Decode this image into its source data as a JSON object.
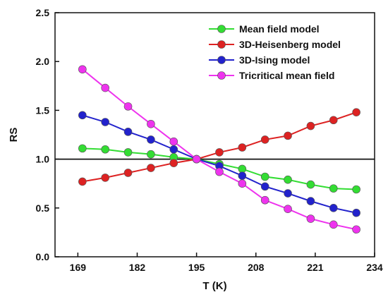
{
  "chart_data": {
    "type": "line",
    "title": "",
    "xlabel": "T (K)",
    "ylabel": "RS",
    "xlim": [
      164,
      234
    ],
    "ylim": [
      0.0,
      2.5
    ],
    "xticks": [
      169,
      182,
      195,
      208,
      221,
      234
    ],
    "yticks": [
      0.0,
      0.5,
      1.0,
      1.5,
      2.0,
      2.5
    ],
    "xtick_labels": [
      "169",
      "182",
      "195",
      "208",
      "221",
      "234"
    ],
    "ytick_labels": [
      "0.0",
      "0.5",
      "1.0",
      "1.5",
      "2.0",
      "2.5"
    ],
    "reference_line_y": 1.0,
    "grid": false,
    "legend_position": "top-right",
    "x": [
      170,
      175,
      180,
      185,
      190,
      195,
      200,
      205,
      210,
      215,
      220,
      225,
      230
    ],
    "series": [
      {
        "name": "Mean field model",
        "color": "#33dd33",
        "values": [
          1.11,
          1.1,
          1.07,
          1.05,
          1.02,
          1.0,
          0.95,
          0.9,
          0.82,
          0.79,
          0.74,
          0.7,
          0.69
        ]
      },
      {
        "name": "3D-Heisenberg model",
        "color": "#dd2222",
        "values": [
          0.77,
          0.81,
          0.86,
          0.91,
          0.96,
          1.0,
          1.07,
          1.12,
          1.2,
          1.24,
          1.34,
          1.4,
          1.48
        ]
      },
      {
        "name": "3D-Ising model",
        "color": "#2222cc",
        "values": [
          1.45,
          1.38,
          1.28,
          1.2,
          1.1,
          1.0,
          0.93,
          0.83,
          0.72,
          0.65,
          0.57,
          0.5,
          0.45
        ]
      },
      {
        "name": "Tricritical mean field",
        "color": "#ee33ee",
        "values": [
          1.92,
          1.73,
          1.54,
          1.36,
          1.18,
          1.0,
          0.87,
          0.75,
          0.58,
          0.49,
          0.39,
          0.33,
          0.28
        ]
      }
    ]
  }
}
